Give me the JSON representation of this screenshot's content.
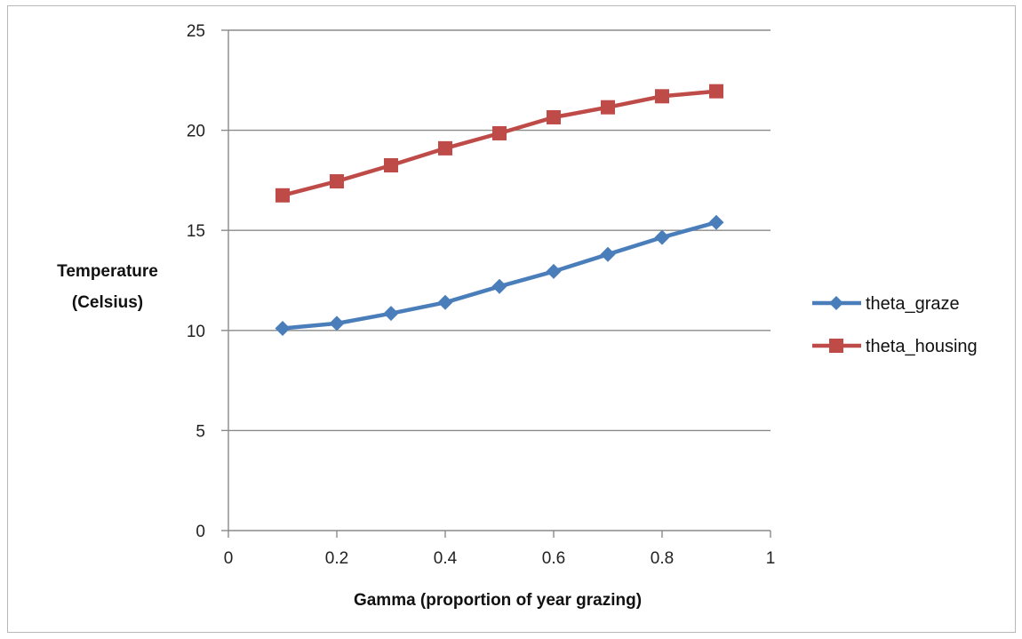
{
  "chart_data": {
    "type": "line",
    "xlabel": "Gamma (proportion of year grazing)",
    "ylabel_lines": [
      "Temperature",
      "(Celsius)"
    ],
    "xlim": [
      0,
      1
    ],
    "ylim": [
      0,
      25
    ],
    "xticks": [
      "0",
      "0.2",
      "0.4",
      "0.6",
      "0.8",
      "1"
    ],
    "yticks": [
      "0",
      "5",
      "10",
      "15",
      "20",
      "25"
    ],
    "grid": "horizontal",
    "legend_position": "right",
    "x": [
      0.1,
      0.2,
      0.3,
      0.4,
      0.5,
      0.6,
      0.7,
      0.8,
      0.9
    ],
    "series": [
      {
        "name": "theta_graze",
        "color": "#4a7ebb",
        "marker": "diamond",
        "values": [
          10.1,
          10.35,
          10.85,
          11.4,
          12.2,
          12.95,
          13.8,
          14.65,
          15.4
        ]
      },
      {
        "name": "theta_housing",
        "color": "#be4b48",
        "marker": "square",
        "values": [
          16.75,
          17.45,
          18.25,
          19.1,
          19.85,
          20.65,
          21.15,
          21.7,
          21.95
        ]
      }
    ]
  }
}
